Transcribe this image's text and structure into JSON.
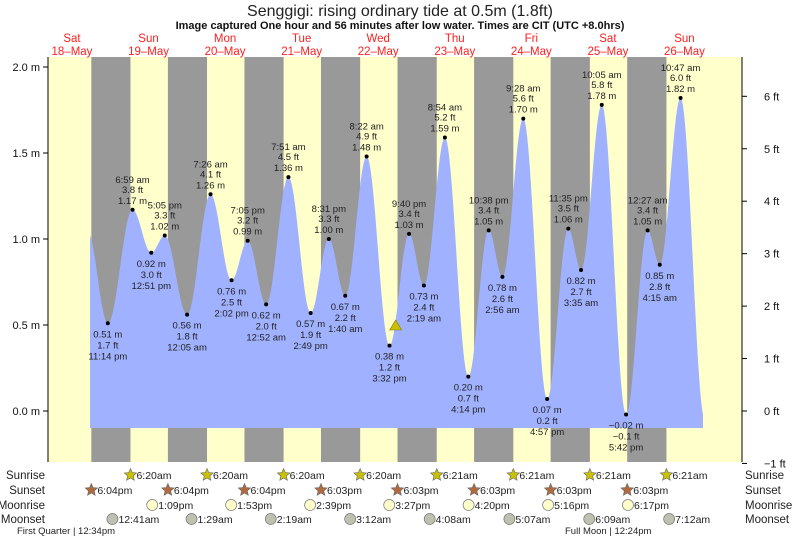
{
  "title": "Senggigi: rising  ordinary tide at 0.5m (1.8ft)",
  "subtitle": "Image captured One hour and 56 minutes after low water. Times are CIT (UTC +8.0hrs)",
  "colors": {
    "day": "#ffffcc",
    "night": "#999999",
    "water": "#a0b2ff",
    "day_label": "#ff2020",
    "sunrise": "#c8c000",
    "sunset": "#b06a40",
    "moonrise": "#ffffcc",
    "moonset": "#c0c0b0",
    "marker": "#c8c000"
  },
  "chart_data": {
    "type": "area",
    "title": "Senggigi: rising  ordinary tide at 0.5m (1.8ft)",
    "days": [
      {
        "dow": "Sat",
        "date": "18–May"
      },
      {
        "dow": "Sun",
        "date": "19–May"
      },
      {
        "dow": "Mon",
        "date": "20–May"
      },
      {
        "dow": "Tue",
        "date": "21–May"
      },
      {
        "dow": "Wed",
        "date": "22–May"
      },
      {
        "dow": "Thu",
        "date": "23–May"
      },
      {
        "dow": "Fri",
        "date": "24–May"
      },
      {
        "dow": "Sat",
        "date": "25–May"
      },
      {
        "dow": "Sun",
        "date": "26–May"
      }
    ],
    "ylim_m": [
      -0.3,
      2.05
    ],
    "left_ticks": [
      {
        "v": 2.0,
        "label": "2.0 m"
      },
      {
        "v": 1.5,
        "label": "1.5 m"
      },
      {
        "v": 1.0,
        "label": "1.0 m"
      },
      {
        "v": 0.5,
        "label": "0.5 m"
      },
      {
        "v": 0.0,
        "label": "0.0 m"
      }
    ],
    "right_ticks": [
      {
        "v": 6,
        "label": "6 ft"
      },
      {
        "v": 5,
        "label": "5 ft"
      },
      {
        "v": 4,
        "label": "4 ft"
      },
      {
        "v": 3,
        "label": "3 ft"
      },
      {
        "v": 2,
        "label": "2 ft"
      },
      {
        "v": 1,
        "label": "1 ft"
      },
      {
        "v": 0,
        "label": "0 ft"
      },
      {
        "v": -1,
        "label": "−1 ft"
      }
    ],
    "extremes": [
      {
        "day": 0,
        "time": "11:14 pm",
        "m": 0.51,
        "m_label": "0.51 m",
        "ft": "1.7 ft",
        "type": "low"
      },
      {
        "day": 1,
        "time": "6:59 am",
        "m": 1.17,
        "m_label": "1.17 m",
        "ft": "3.8 ft",
        "type": "high"
      },
      {
        "day": 1,
        "time": "12:51 pm",
        "m": 0.92,
        "m_label": "0.92 m",
        "ft": "3.0 ft",
        "type": "low"
      },
      {
        "day": 1,
        "time": "5:05 pm",
        "m": 1.02,
        "m_label": "1.02 m",
        "ft": "3.3 ft",
        "type": "high"
      },
      {
        "day": 2,
        "time": "12:05 am",
        "m": 0.56,
        "m_label": "0.56 m",
        "ft": "1.8 ft",
        "type": "low"
      },
      {
        "day": 2,
        "time": "7:26 am",
        "m": 1.26,
        "m_label": "1.26 m",
        "ft": "4.1 ft",
        "type": "high"
      },
      {
        "day": 2,
        "time": "2:02 pm",
        "m": 0.76,
        "m_label": "0.76 m",
        "ft": "2.5 ft",
        "type": "low"
      },
      {
        "day": 2,
        "time": "7:05 pm",
        "m": 0.99,
        "m_label": "0.99 m",
        "ft": "3.2 ft",
        "type": "high"
      },
      {
        "day": 3,
        "time": "12:52 am",
        "m": 0.62,
        "m_label": "0.62 m",
        "ft": "2.0 ft",
        "type": "low"
      },
      {
        "day": 3,
        "time": "7:51 am",
        "m": 1.36,
        "m_label": "1.36 m",
        "ft": "4.5 ft",
        "type": "high"
      },
      {
        "day": 3,
        "time": "2:49 pm",
        "m": 0.57,
        "m_label": "0.57 m",
        "ft": "1.9 ft",
        "type": "low"
      },
      {
        "day": 3,
        "time": "8:31 pm",
        "m": 1.0,
        "m_label": "1.00 m",
        "ft": "3.3 ft",
        "type": "high"
      },
      {
        "day": 4,
        "time": "1:40 am",
        "m": 0.67,
        "m_label": "0.67 m",
        "ft": "2.2 ft",
        "type": "low"
      },
      {
        "day": 4,
        "time": "8:22 am",
        "m": 1.48,
        "m_label": "1.48 m",
        "ft": "4.9 ft",
        "type": "high"
      },
      {
        "day": 4,
        "time": "3:32 pm",
        "m": 0.38,
        "m_label": "0.38 m",
        "ft": "1.2 ft",
        "type": "low"
      },
      {
        "day": 4,
        "time": "9:40 pm",
        "m": 1.03,
        "m_label": "1.03 m",
        "ft": "3.4 ft",
        "type": "high"
      },
      {
        "day": 5,
        "time": "2:19 am",
        "m": 0.73,
        "m_label": "0.73 m",
        "ft": "2.4 ft",
        "type": "low"
      },
      {
        "day": 5,
        "time": "8:54 am",
        "m": 1.59,
        "m_label": "1.59 m",
        "ft": "5.2 ft",
        "type": "high"
      },
      {
        "day": 5,
        "time": "4:14 pm",
        "m": 0.2,
        "m_label": "0.20 m",
        "ft": "0.7 ft",
        "type": "low"
      },
      {
        "day": 5,
        "time": "10:38 pm",
        "m": 1.05,
        "m_label": "1.05 m",
        "ft": "3.4 ft",
        "type": "high"
      },
      {
        "day": 6,
        "time": "2:56 am",
        "m": 0.78,
        "m_label": "0.78 m",
        "ft": "2.6 ft",
        "type": "low"
      },
      {
        "day": 6,
        "time": "9:28 am",
        "m": 1.7,
        "m_label": "1.70 m",
        "ft": "5.6 ft",
        "type": "high"
      },
      {
        "day": 6,
        "time": "4:57 pm",
        "m": 0.07,
        "m_label": "0.07 m",
        "ft": "0.2 ft",
        "type": "low"
      },
      {
        "day": 6,
        "time": "11:35 pm",
        "m": 1.06,
        "m_label": "1.06 m",
        "ft": "3.5 ft",
        "type": "high"
      },
      {
        "day": 7,
        "time": "3:35 am",
        "m": 0.82,
        "m_label": "0.82 m",
        "ft": "2.7 ft",
        "type": "low"
      },
      {
        "day": 7,
        "time": "10:05 am",
        "m": 1.78,
        "m_label": "1.78 m",
        "ft": "5.8 ft",
        "type": "high"
      },
      {
        "day": 7,
        "time": "5:42 pm",
        "m": -0.02,
        "m_label": "−0.02 m",
        "ft": "−0.1 ft",
        "type": "low"
      },
      {
        "day": 8,
        "time": "12:27 am",
        "m": 1.05,
        "m_label": "1.05 m",
        "ft": "3.4 ft",
        "type": "high"
      },
      {
        "day": 8,
        "time": "4:15 am",
        "m": 0.85,
        "m_label": "0.85 m",
        "ft": "2.8 ft",
        "type": "low"
      },
      {
        "day": 8,
        "time": "10:47 am",
        "m": 1.82,
        "m_label": "1.82 m",
        "ft": "6.0 ft",
        "type": "high"
      }
    ],
    "current": {
      "day": 4,
      "time": "5:28 pm",
      "m": 0.5
    }
  },
  "almanac": {
    "labels": {
      "sunrise": "Sunrise",
      "sunset": "Sunset",
      "moonrise": "Moonrise",
      "moonset": "Moonset"
    },
    "sunrise": [
      {
        "day": 1,
        "time": "6:20am"
      },
      {
        "day": 2,
        "time": "6:20am"
      },
      {
        "day": 3,
        "time": "6:20am"
      },
      {
        "day": 4,
        "time": "6:20am"
      },
      {
        "day": 5,
        "time": "6:21am"
      },
      {
        "day": 6,
        "time": "6:21am"
      },
      {
        "day": 7,
        "time": "6:21am"
      },
      {
        "day": 8,
        "time": "6:21am"
      }
    ],
    "sunset": [
      {
        "day": 0,
        "time": "6:04pm"
      },
      {
        "day": 1,
        "time": "6:04pm"
      },
      {
        "day": 2,
        "time": "6:04pm"
      },
      {
        "day": 3,
        "time": "6:03pm"
      },
      {
        "day": 4,
        "time": "6:03pm"
      },
      {
        "day": 5,
        "time": "6:03pm"
      },
      {
        "day": 6,
        "time": "6:03pm"
      },
      {
        "day": 7,
        "time": "6:03pm"
      }
    ],
    "moonrise": [
      {
        "day": 1,
        "time": "1:09pm"
      },
      {
        "day": 2,
        "time": "1:53pm"
      },
      {
        "day": 3,
        "time": "2:39pm"
      },
      {
        "day": 4,
        "time": "3:27pm"
      },
      {
        "day": 5,
        "time": "4:20pm"
      },
      {
        "day": 6,
        "time": "5:16pm"
      },
      {
        "day": 7,
        "time": "6:17pm"
      }
    ],
    "moonset": [
      {
        "day": 1,
        "time": "12:41am"
      },
      {
        "day": 2,
        "time": "1:29am"
      },
      {
        "day": 3,
        "time": "2:19am"
      },
      {
        "day": 4,
        "time": "3:12am"
      },
      {
        "day": 5,
        "time": "4:08am"
      },
      {
        "day": 6,
        "time": "5:07am"
      },
      {
        "day": 7,
        "time": "6:09am"
      },
      {
        "day": 8,
        "time": "7:12am"
      }
    ],
    "phases": [
      {
        "label": "First Quarter | 12:34pm"
      },
      {
        "label": "Full Moon | 12:24pm"
      }
    ]
  }
}
